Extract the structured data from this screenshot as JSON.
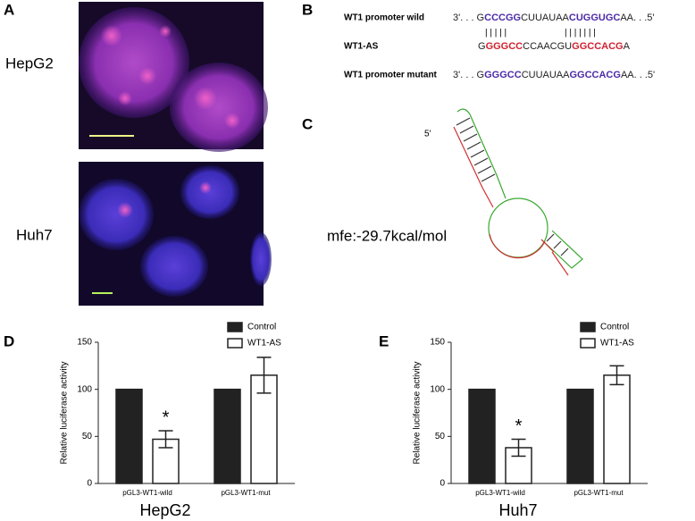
{
  "panels": {
    "a": {
      "letter": "A",
      "labels": [
        "HepG2",
        "Huh7"
      ]
    },
    "b": {
      "letter": "B",
      "rows": [
        {
          "label": "WT1 promoter wild",
          "segments": [
            {
              "text": "3'. . . G",
              "color": "#222222"
            },
            {
              "text": "CCCGG",
              "color": "#4b2aa8"
            },
            {
              "text": "CUUAUAA",
              "color": "#222222"
            },
            {
              "text": "CUGGUGC",
              "color": "#4b2aa8"
            },
            {
              "text": "AA. . .5'",
              "color": "#222222"
            }
          ]
        },
        {
          "label": "WT1-AS",
          "segments": [
            {
              "text": "G",
              "color": "#222222"
            },
            {
              "text": "GGGCC",
              "color": "#d0202e"
            },
            {
              "text": "CCAACGU",
              "color": "#222222"
            },
            {
              "text": "GGCCACG",
              "color": "#d0202e"
            },
            {
              "text": "A",
              "color": "#222222"
            }
          ]
        },
        {
          "label": "WT1 promoter mutant",
          "segments": [
            {
              "text": "3'. . . G",
              "color": "#222222"
            },
            {
              "text": "GGGCC",
              "color": "#4b2aa8"
            },
            {
              "text": "CUUAUAA",
              "color": "#222222"
            },
            {
              "text": "GGCCACG",
              "color": "#4b2aa8"
            },
            {
              "text": "AA. . .5'",
              "color": "#222222"
            }
          ]
        }
      ],
      "pairing": [
        "| | | | |",
        "| | | | | | |"
      ]
    },
    "c": {
      "letter": "C",
      "end_label": "5'",
      "mfe": "mfe:-29.7kcal/mol"
    }
  },
  "chart_data": [
    {
      "type": "bar",
      "letter": "D",
      "title": "HepG2",
      "ylabel": "Relative luciferase activity",
      "categories": [
        "pGL3-WT1-wild",
        "pGL3-WT1-mut"
      ],
      "series": [
        {
          "name": "Control",
          "color": "#222222",
          "values": [
            100,
            100
          ]
        },
        {
          "name": "WT1-AS",
          "color": "#ffffff",
          "values": [
            47,
            115
          ],
          "errors": [
            9,
            19
          ]
        }
      ],
      "ylim": [
        0,
        150
      ],
      "yticks": [
        0,
        50,
        100,
        150
      ],
      "legend": "upper right",
      "annotations": [
        {
          "text": "*"
        }
      ]
    },
    {
      "type": "bar",
      "letter": "E",
      "title": "Huh7",
      "ylabel": "Relative luciferase activity",
      "categories": [
        "pGL3-WT1-wild",
        "pGL3-WT1-mut"
      ],
      "series": [
        {
          "name": "Control",
          "color": "#222222",
          "values": [
            100,
            100
          ]
        },
        {
          "name": "WT1-AS",
          "color": "#ffffff",
          "values": [
            38,
            115
          ],
          "errors": [
            9,
            10
          ]
        }
      ],
      "ylim": [
        0,
        150
      ],
      "yticks": [
        0,
        50,
        100,
        150
      ],
      "legend": "upper right",
      "annotations": [
        {
          "text": "*"
        }
      ]
    }
  ]
}
